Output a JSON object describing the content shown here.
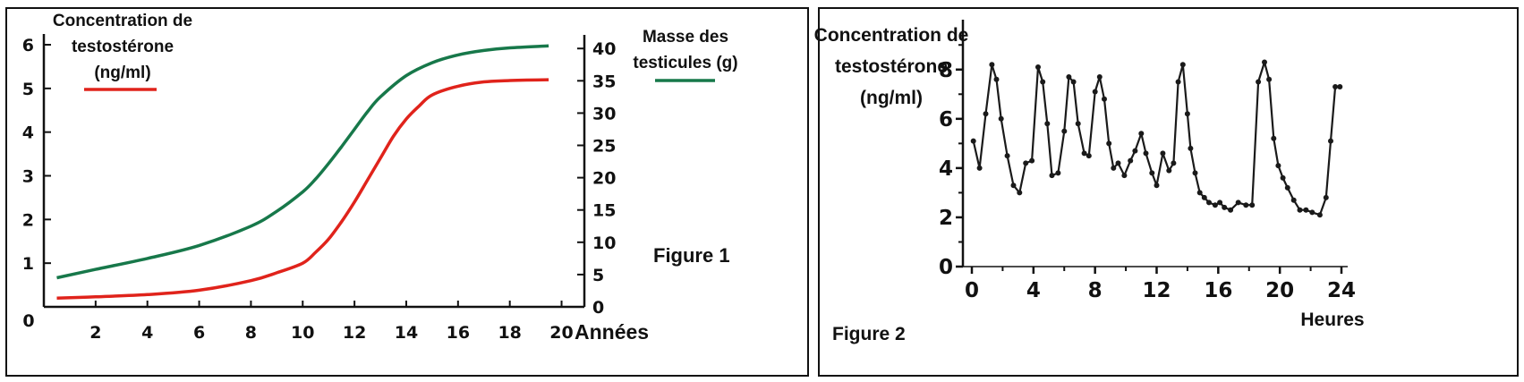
{
  "figure1": {
    "caption": "Figure 1",
    "left_label_lines": [
      "Concentration de",
      "testostérone",
      "(ng/ml)"
    ],
    "right_label_lines": [
      "Masse des",
      "testicules (g)"
    ],
    "x_unit_label": "Années",
    "origin_label": "0",
    "colors": {
      "testosterone": "#e0231b",
      "mass": "#17784a"
    }
  },
  "figure2": {
    "caption": "Figure 2",
    "y_label_lines": [
      "Concentration de",
      "testostérone",
      "(ng/ml)"
    ],
    "x_unit_label": "Heures",
    "colors": {
      "line": "#1a1a1a"
    }
  },
  "chart_data": [
    {
      "type": "line",
      "title": "Figure 1",
      "xlabel": "Années",
      "x_ticks": [
        2,
        4,
        6,
        8,
        10,
        12,
        14,
        16,
        18,
        20
      ],
      "xlim": [
        0,
        20.5
      ],
      "y_left": {
        "label": "Concentration de testostérone (ng/ml)",
        "ticks": [
          1,
          2,
          3,
          4,
          5,
          6
        ],
        "lim": [
          0,
          6
        ]
      },
      "y_right": {
        "label": "Masse des testicules (g)",
        "ticks": [
          0,
          5,
          10,
          15,
          20,
          25,
          30,
          35,
          40
        ],
        "lim": [
          0,
          41
        ]
      },
      "legend": "top-left and top-right, as colored line segments",
      "grid": false,
      "series": [
        {
          "name": "Concentration de testostérone (ng/ml)",
          "axis": "left",
          "x": [
            0.5,
            2,
            4,
            6,
            8,
            9,
            10,
            10.5,
            11,
            11.5,
            12,
            12.5,
            13,
            13.5,
            14,
            14.5,
            15,
            16,
            17,
            18,
            19.5
          ],
          "y": [
            0.2,
            0.23,
            0.28,
            0.38,
            0.6,
            0.78,
            1.0,
            1.25,
            1.55,
            1.95,
            2.4,
            2.9,
            3.4,
            3.9,
            4.3,
            4.6,
            4.85,
            5.05,
            5.15,
            5.18,
            5.2
          ]
        },
        {
          "name": "Masse des testicules (g)",
          "axis": "right",
          "x": [
            0.5,
            2,
            4,
            6,
            8,
            9,
            10,
            10.5,
            11,
            11.5,
            12,
            12.5,
            13,
            14,
            15,
            16,
            17,
            18,
            19.5
          ],
          "y": [
            4.5,
            5.8,
            7.5,
            9.5,
            12.5,
            14.8,
            17.8,
            19.8,
            22.2,
            24.8,
            27.5,
            30.2,
            32.5,
            35.8,
            37.8,
            39.0,
            39.7,
            40.1,
            40.4
          ]
        }
      ]
    },
    {
      "type": "line",
      "title": "Figure 2",
      "xlabel": "Heures",
      "ylabel": "Concentration de testostérone (ng/ml)",
      "x_ticks": [
        0,
        4,
        8,
        12,
        16,
        20,
        24
      ],
      "y_ticks": [
        0,
        2,
        4,
        6,
        8
      ],
      "xlim": [
        0,
        24
      ],
      "ylim": [
        0,
        8.5
      ],
      "grid": false,
      "markers": true,
      "series": [
        {
          "x": [
            0.1,
            0.5,
            0.9,
            1.3,
            1.6,
            1.9,
            2.3,
            2.7,
            3.1,
            3.5,
            3.9,
            4.3,
            4.6,
            4.9,
            5.2,
            5.6,
            6.0,
            6.3,
            6.6,
            6.9,
            7.3,
            7.6,
            8.0,
            8.3,
            8.6,
            8.9,
            9.2,
            9.5,
            9.9,
            10.3,
            10.6,
            11.0,
            11.3,
            11.7,
            12.0,
            12.4,
            12.8,
            13.1,
            13.4,
            13.7,
            14.0,
            14.2,
            14.5,
            14.8,
            15.1,
            15.4,
            15.8,
            16.1,
            16.4,
            16.8,
            17.3,
            17.8,
            18.2,
            18.6,
            19.0,
            19.3,
            19.6,
            19.9,
            20.2,
            20.5,
            20.9,
            21.3,
            21.7,
            22.1,
            22.6,
            23.0,
            23.3,
            23.6,
            23.9
          ],
          "y": [
            5.1,
            4.0,
            6.2,
            8.2,
            7.6,
            6.0,
            4.5,
            3.3,
            3.0,
            4.2,
            4.3,
            8.1,
            7.5,
            5.8,
            3.7,
            3.8,
            5.5,
            7.7,
            7.5,
            5.8,
            4.6,
            4.5,
            7.1,
            7.7,
            6.8,
            5.0,
            4.0,
            4.2,
            3.7,
            4.3,
            4.7,
            5.4,
            4.6,
            3.8,
            3.3,
            4.6,
            3.9,
            4.2,
            7.5,
            8.2,
            6.2,
            4.8,
            3.8,
            3.0,
            2.8,
            2.6,
            2.5,
            2.6,
            2.4,
            2.3,
            2.6,
            2.5,
            2.5,
            7.5,
            8.3,
            7.6,
            5.2,
            4.1,
            3.6,
            3.2,
            2.7,
            2.3,
            2.3,
            2.2,
            2.1,
            2.8,
            5.1,
            7.3,
            7.3
          ]
        }
      ]
    }
  ]
}
